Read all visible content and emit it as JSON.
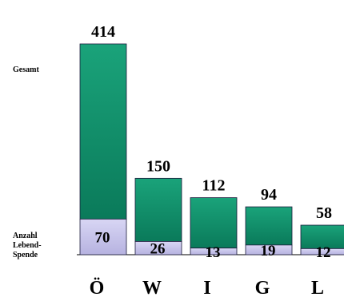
{
  "labels": {
    "gesamt": "Gesamt",
    "living_line1": "Anzahl",
    "living_line2": "Lebend-",
    "living_line3": "Spende"
  },
  "chart_data": {
    "type": "bar",
    "categories": [
      "Ö",
      "W",
      "I",
      "G",
      "L"
    ],
    "series": [
      {
        "name": "Gesamt",
        "values": [
          414,
          150,
          112,
          94,
          58
        ]
      },
      {
        "name": "Anzahl Lebend-Spende",
        "values": [
          70,
          26,
          13,
          19,
          12
        ]
      }
    ],
    "ylim": [
      0,
      414
    ],
    "grid": false,
    "legend": "left"
  },
  "colors": {
    "total_top": "#1aa37a",
    "total_bottom": "#0a7a5a",
    "living_top": "#d8d6f4",
    "living_bottom": "#b6b2e0",
    "outline": "#1a1a3a"
  }
}
